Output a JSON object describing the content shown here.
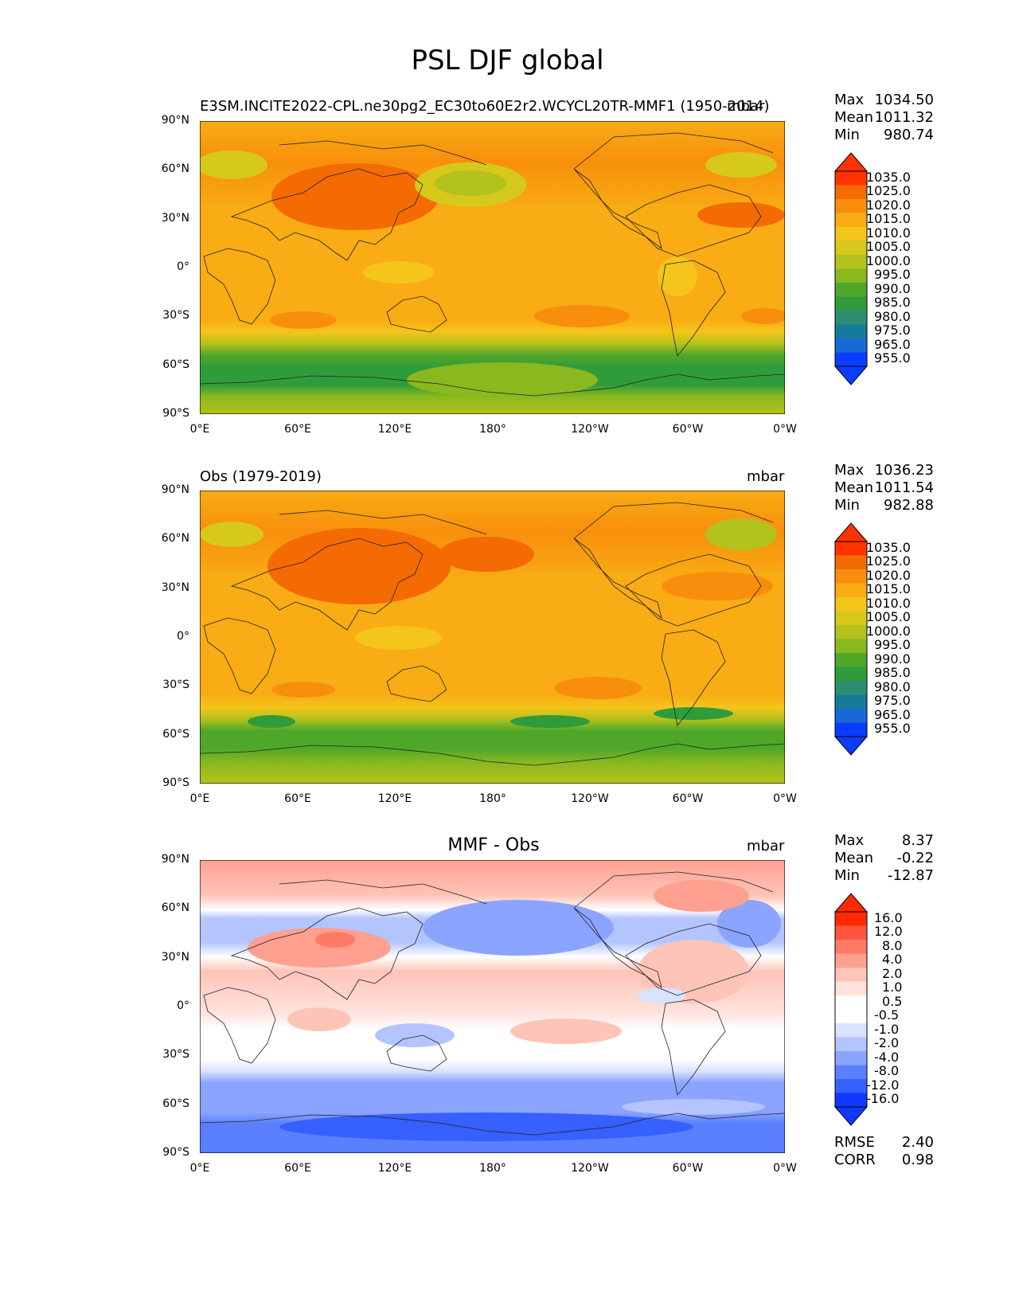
{
  "suptitle": "PSL DJF global",
  "lat_labels": [
    "90°N",
    "60°N",
    "30°N",
    "0°",
    "30°S",
    "60°S",
    "90°S"
  ],
  "lon_labels": [
    "0°E",
    "60°E",
    "120°E",
    "180°",
    "120°W",
    "60°W",
    "0°W"
  ],
  "colors": {
    "abs_bins": [
      "#0a3dff",
      "#1968d8",
      "#147b9b",
      "#2e8c72",
      "#2f9c3c",
      "#4fa72a",
      "#8ab81f",
      "#b3c21c",
      "#d7c81c",
      "#f4c51b",
      "#f9ac14",
      "#f88f0c",
      "#f46b03",
      "#ff3300"
    ],
    "diff_bins": [
      "#1038ff",
      "#3660ff",
      "#5a80ff",
      "#8ba4ff",
      "#b3c4ff",
      "#d9e2ff",
      "#ffffff",
      "#ffffff",
      "#ffe2dc",
      "#ffc4b8",
      "#ffa090",
      "#ff7a66",
      "#ff5540",
      "#ff2a00"
    ]
  },
  "panels": [
    {
      "title": "E3SM.INCITE2022-CPL.ne30pg2_EC30to60E2r2.WCYCL20TR-MMF1 (1950-2014)",
      "units": "mbar",
      "stats": [
        {
          "label": "Max",
          "value": "1034.50"
        },
        {
          "label": "Mean",
          "value": "1011.32"
        },
        {
          "label": "Min",
          "value": "980.74"
        }
      ],
      "colorbar_levels": [
        "1035.0",
        "1025.0",
        "1020.0",
        "1015.0",
        "1010.0",
        "1005.0",
        "1000.0",
        "995.0",
        "990.0",
        "985.0",
        "980.0",
        "975.0",
        "965.0",
        "955.0"
      ]
    },
    {
      "title": "Obs (1979-2019)",
      "units": "mbar",
      "stats": [
        {
          "label": "Max",
          "value": "1036.23"
        },
        {
          "label": "Mean",
          "value": "1011.54"
        },
        {
          "label": "Min",
          "value": "982.88"
        }
      ],
      "colorbar_levels": [
        "1035.0",
        "1025.0",
        "1020.0",
        "1015.0",
        "1010.0",
        "1005.0",
        "1000.0",
        "995.0",
        "990.0",
        "985.0",
        "980.0",
        "975.0",
        "965.0",
        "955.0"
      ]
    },
    {
      "title": "MMF - Obs",
      "units": "mbar",
      "stats": [
        {
          "label": "Max",
          "value": "8.37"
        },
        {
          "label": "Mean",
          "value": "-0.22"
        },
        {
          "label": "Min",
          "value": "-12.87"
        }
      ],
      "colorbar_levels": [
        "16.0",
        "12.0",
        "8.0",
        "4.0",
        "2.0",
        "1.0",
        "0.5",
        "-0.5",
        "-1.0",
        "-2.0",
        "-4.0",
        "-8.0",
        "-12.0",
        "-16.0"
      ],
      "metrics": [
        {
          "label": "RMSE",
          "value": "2.40"
        },
        {
          "label": "CORR",
          "value": "0.98"
        }
      ]
    }
  ]
}
